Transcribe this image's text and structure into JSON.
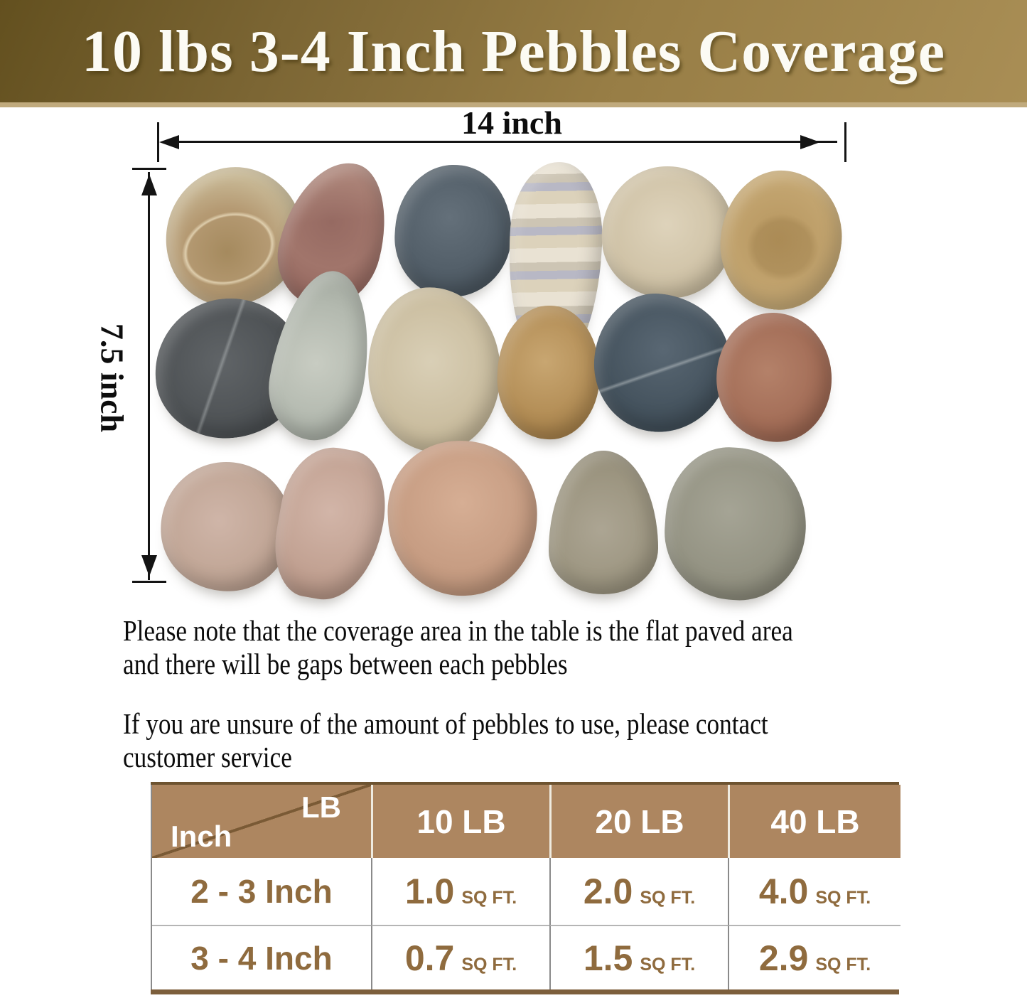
{
  "banner": {
    "title": "10 lbs 3-4 Inch Pebbles Coverage",
    "bg_dark": "#63501f",
    "bg_light": "#a98e55",
    "underline_color": "#c0aa7d",
    "text_color": "#fcfbf4"
  },
  "dimensions": {
    "width_label": "14 inch",
    "height_label": "7.5 inch"
  },
  "notes": {
    "coverage": {
      "line1": "Please note that the coverage area in the table is the flat paved area",
      "line2": "and there will be gaps between each pebbles"
    },
    "contact": {
      "line1": "If you are unsure of the amount of pebbles to use, please contact",
      "line2": "customer service"
    }
  },
  "table": {
    "corner": {
      "top_right": "LB",
      "bottom_left": "Inch"
    },
    "columns": [
      "10 LB",
      "20 LB",
      "40 LB"
    ],
    "rows": [
      {
        "label": "2 - 3 Inch",
        "values": [
          {
            "num": "1.0",
            "unit": "SQ FT."
          },
          {
            "num": "2.0",
            "unit": "SQ FT."
          },
          {
            "num": "4.0",
            "unit": "SQ FT."
          }
        ]
      },
      {
        "label": "3 - 4 Inch",
        "values": [
          {
            "num": "0.7",
            "unit": "SQ FT."
          },
          {
            "num": "1.5",
            "unit": "SQ FT."
          },
          {
            "num": "2.9",
            "unit": "SQ FT."
          }
        ]
      }
    ],
    "header_bg": "#ad8660",
    "header_text_color": "#ffffff",
    "value_text_color": "#8f6b3e"
  }
}
